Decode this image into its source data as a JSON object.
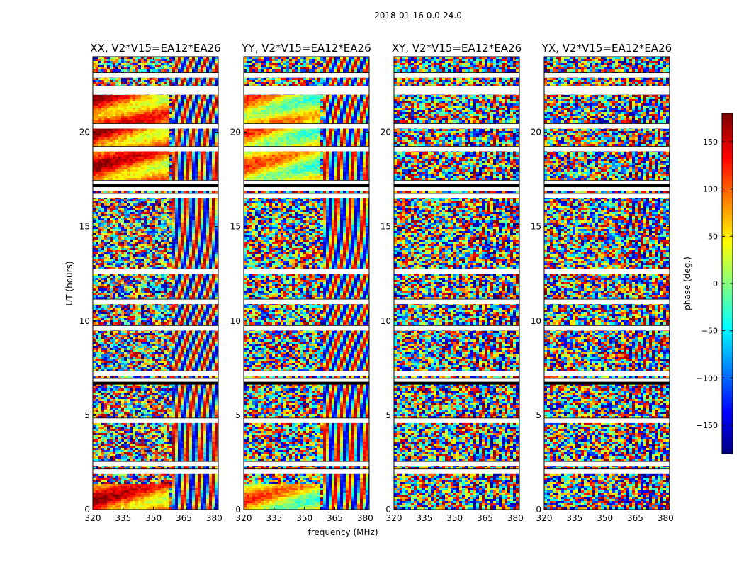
{
  "chart_data": {
    "type": "heatmap",
    "suptitle": "2018-01-16 0.0-24.0",
    "xlabel": "frequency (MHz)",
    "ylabel": "UT (hours)",
    "xlim": [
      320,
      382
    ],
    "ylim": [
      0,
      24
    ],
    "x_ticks": [
      320,
      335,
      350,
      365,
      380
    ],
    "y_ticks": [
      0,
      5,
      10,
      15,
      20
    ],
    "panels": [
      {
        "title": "XX, V2*V15=EA12*EA26",
        "pol": "XX"
      },
      {
        "title": "YY, V2*V15=EA12*EA26",
        "pol": "YY"
      },
      {
        "title": "XY, V2*V15=EA12*EA26",
        "pol": "XY"
      },
      {
        "title": "YX, V2*V15=EA12*EA26",
        "pol": "YX"
      }
    ],
    "colorbar": {
      "label": "phase (deg.)",
      "range": [
        -180,
        180
      ],
      "ticks": [
        150,
        100,
        50,
        0,
        -50,
        -100,
        -150
      ],
      "tick_labels": [
        "150",
        "100",
        "50",
        "0",
        "−50",
        "−100",
        "−150"
      ],
      "colormap": "jet"
    },
    "flagged_ut_hours": [
      2.0,
      2.4,
      4.7,
      6.8,
      7.2,
      9.6,
      11.0,
      12.6,
      16.6,
      17.0,
      17.3,
      19.1,
      20.3,
      22.1,
      22.3,
      23.0
    ]
  }
}
